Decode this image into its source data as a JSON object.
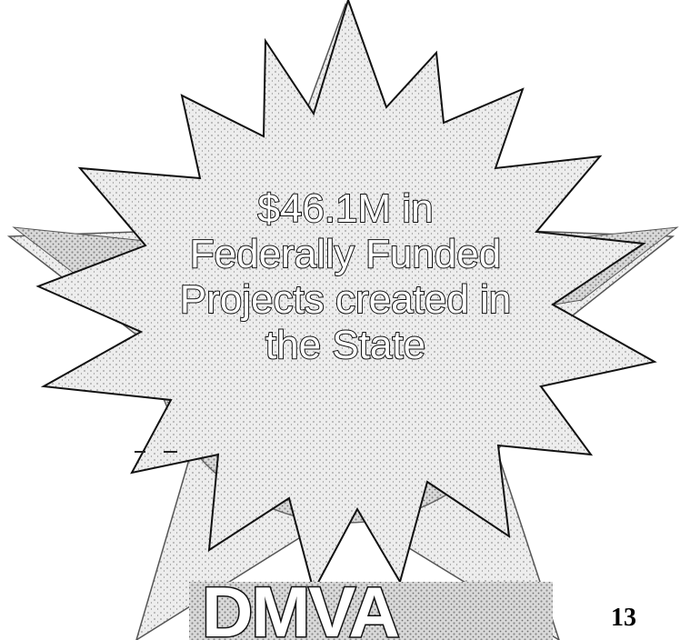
{
  "emblem": {
    "logo_text": "DMVA"
  },
  "burst": {
    "lines": [
      "$46.1M in",
      "Federally Funded",
      "Projects created in",
      "the State"
    ]
  },
  "footer": {
    "page_number": "13"
  },
  "colors": {
    "burst_fill": "#ffffff",
    "outline": "#111111",
    "halftone_gray": "#9a9a9a",
    "text_fill": "#ffffff"
  }
}
